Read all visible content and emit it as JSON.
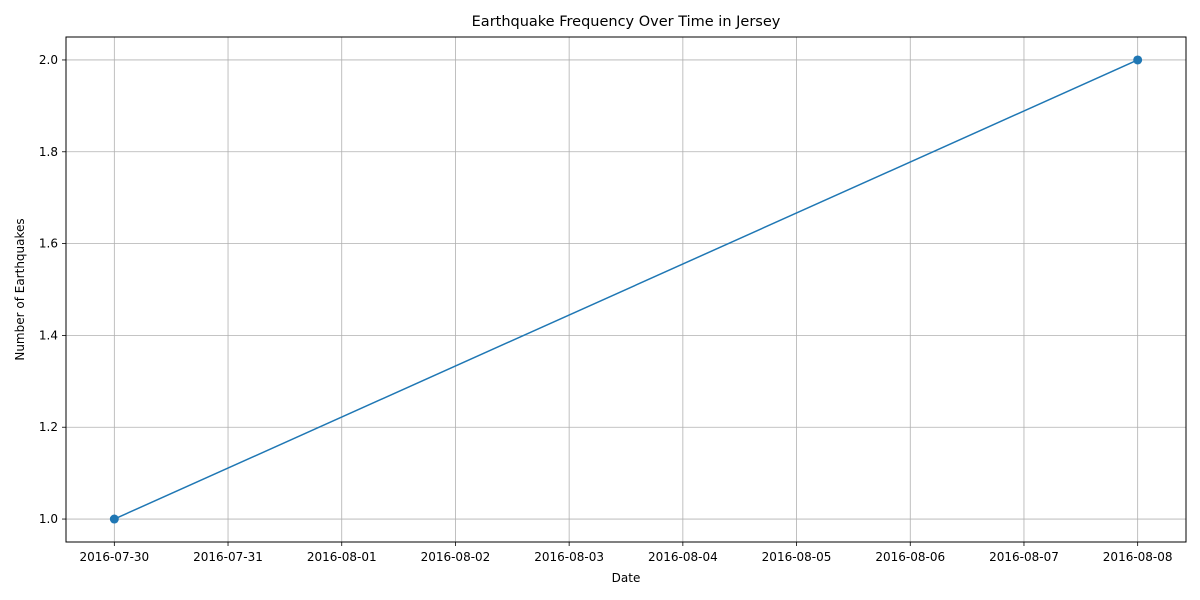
{
  "chart_data": {
    "type": "line",
    "title": "Earthquake Frequency Over Time in Jersey",
    "xlabel": "Date",
    "ylabel": "Number of Earthquakes",
    "x_ticks": [
      "2016-07-30",
      "2016-07-31",
      "2016-08-01",
      "2016-08-02",
      "2016-08-03",
      "2016-08-04",
      "2016-08-05",
      "2016-08-06",
      "2016-08-07",
      "2016-08-08"
    ],
    "y_ticks": [
      "1.0",
      "1.2",
      "1.4",
      "1.6",
      "1.8",
      "2.0"
    ],
    "xlim": [
      "2016-07-29T13:48",
      "2016-08-08T10:12"
    ],
    "ylim": [
      0.95,
      2.05
    ],
    "grid": true,
    "marker": "circle",
    "series": [
      {
        "color": "#1f77b4",
        "points": [
          {
            "x": "2016-07-30",
            "y": 1
          },
          {
            "x": "2016-08-08",
            "y": 2
          }
        ]
      }
    ]
  }
}
